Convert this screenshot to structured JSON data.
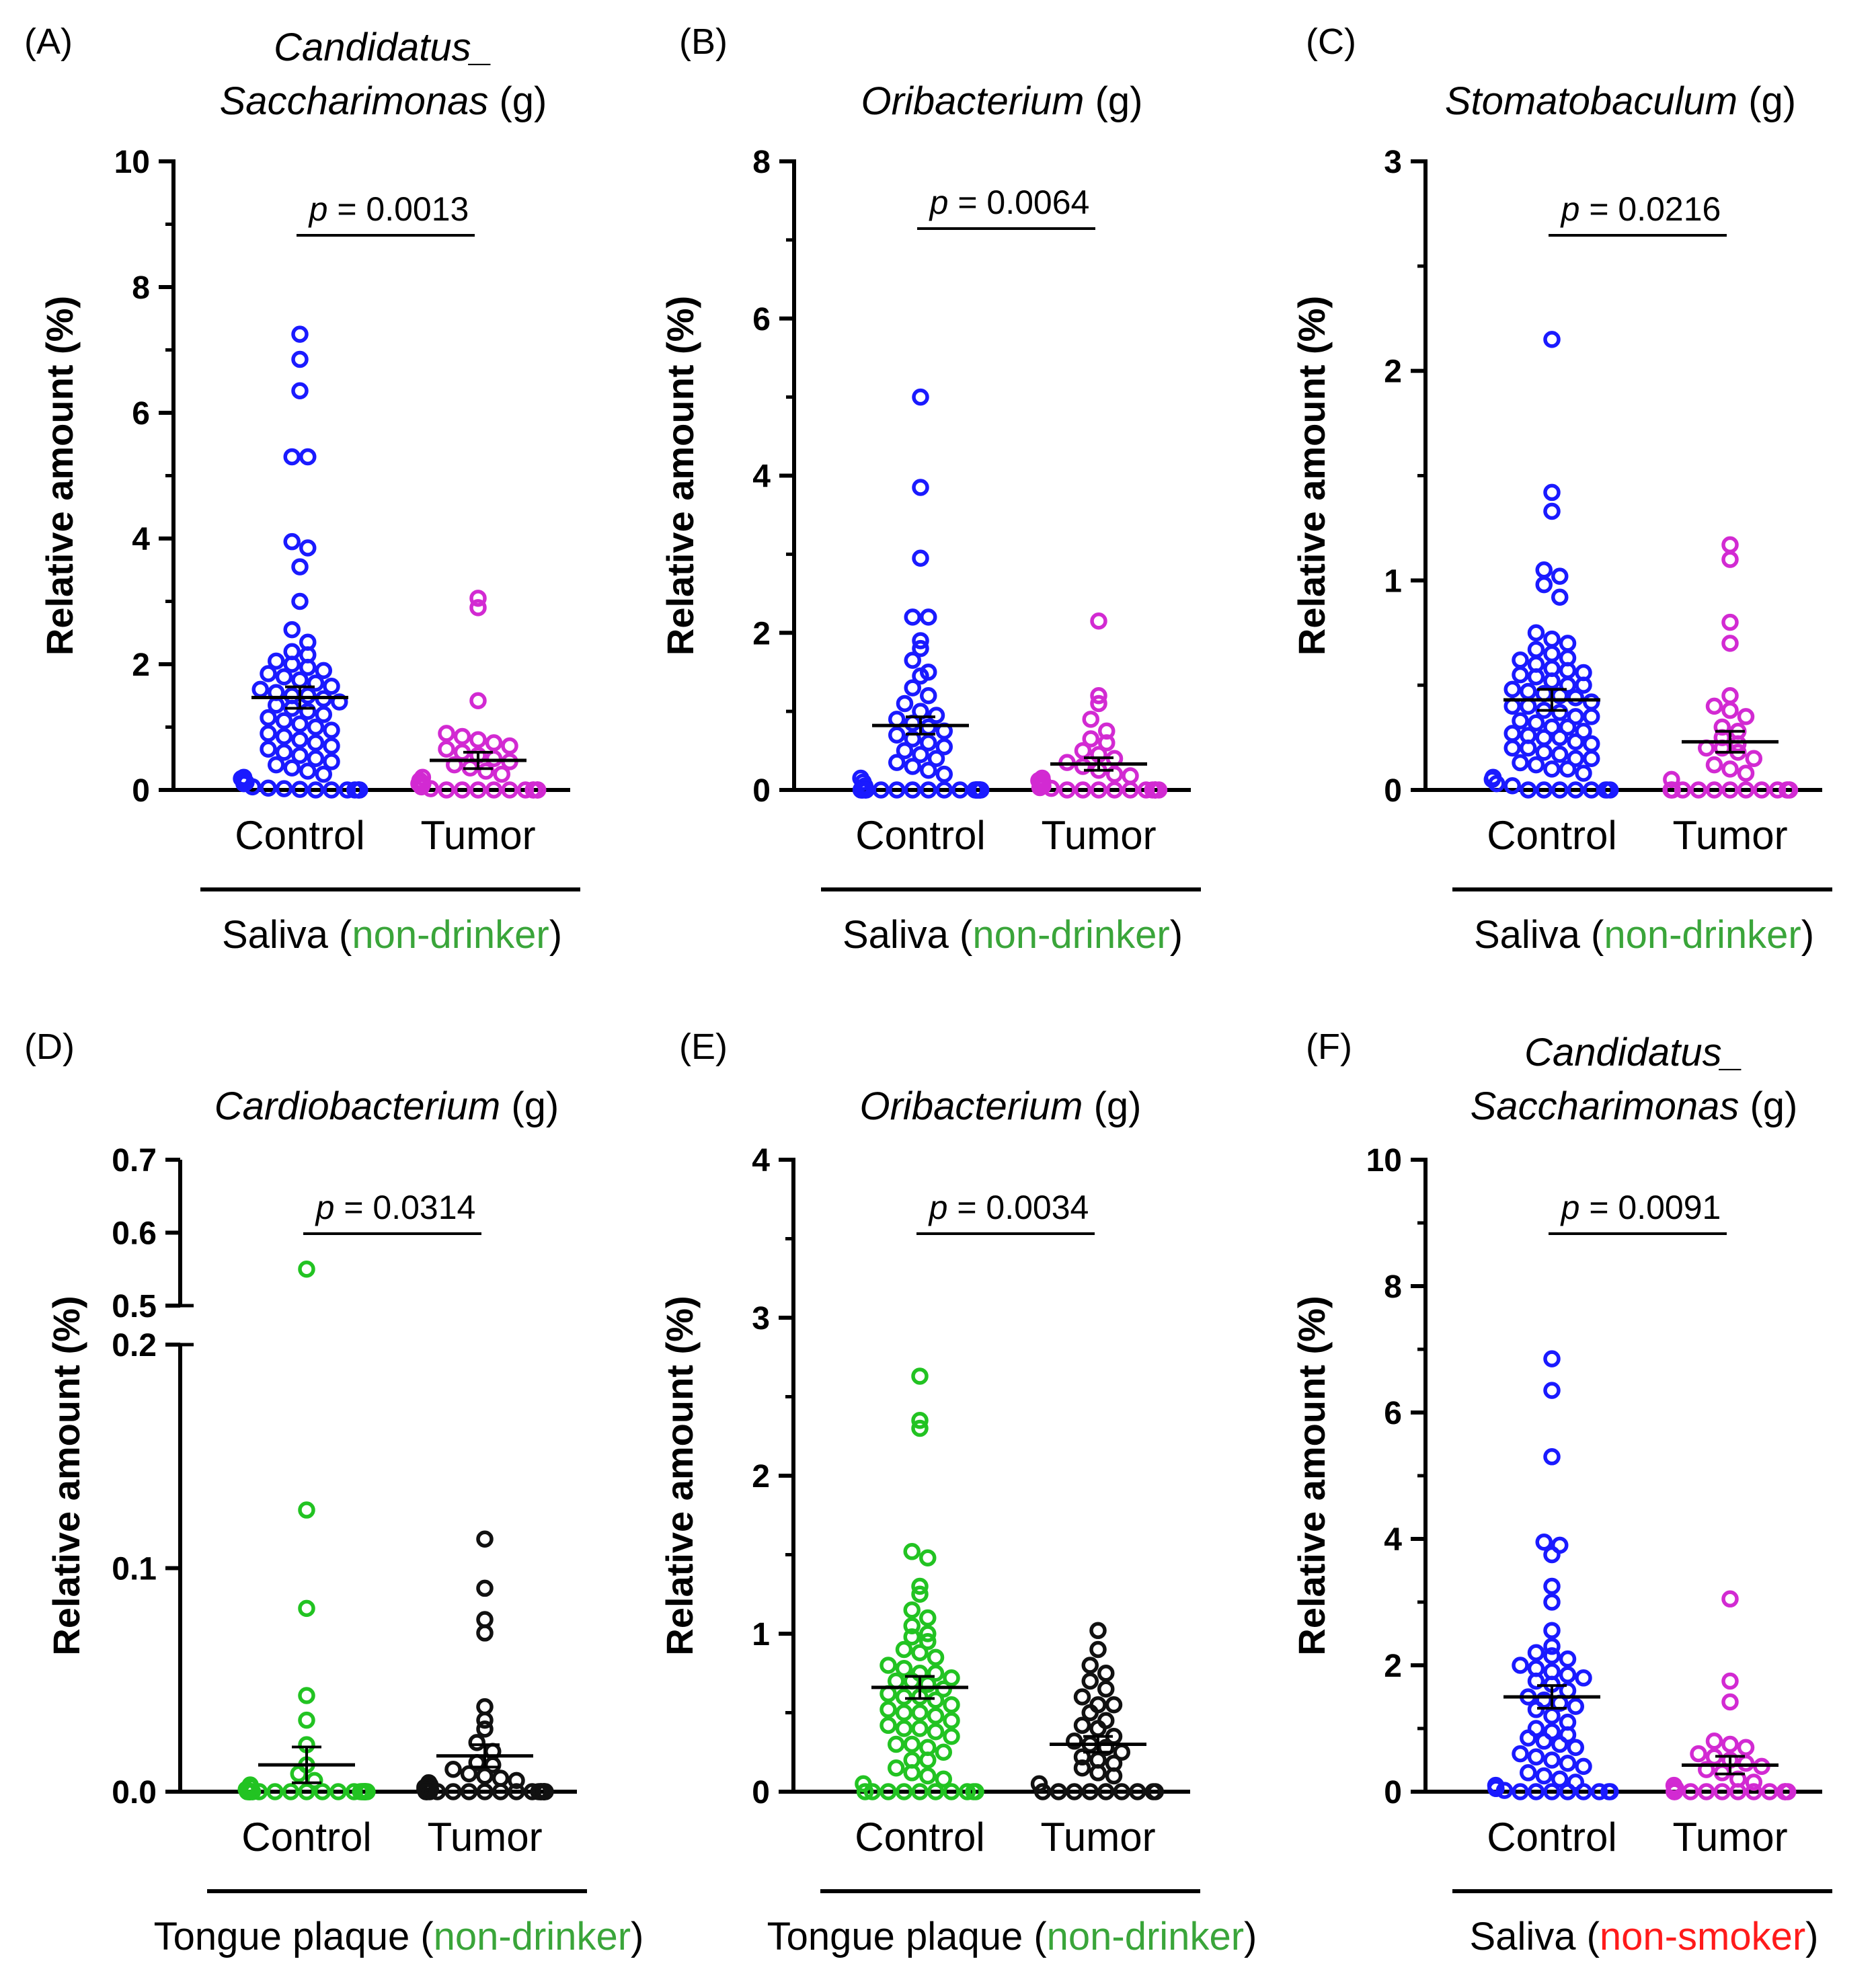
{
  "colors": {
    "control_blue": "#1a1aff",
    "tumor_magenta": "#d22ad2",
    "control_green": "#22c322",
    "tumor_black": "#111111",
    "condition_green": "#3aa53a",
    "condition_red": "#ff1a1a",
    "axis": "#000000"
  },
  "chart_data": [
    {
      "id": "A",
      "panel_label": "(A)",
      "type": "scatter",
      "title_lines": [
        [
          {
            "text": "Candidatus_",
            "italic": true
          }
        ],
        [
          {
            "text": "Saccharimonas",
            "italic": true
          },
          {
            "text": " (g)",
            "italic": false
          }
        ]
      ],
      "ylabel": "Relative amount (%)",
      "ylim": [
        0,
        10
      ],
      "yticks": [
        0,
        2,
        4,
        6,
        8,
        10
      ],
      "yticklabels": [
        "0",
        "2",
        "4",
        "6",
        "8",
        "10"
      ],
      "categories": [
        "Control",
        "Tumor"
      ],
      "p_label": "p",
      "p_value": " = 0.0013",
      "group_label": "Saliva",
      "condition": "non-drinker",
      "condition_color": "#3aa53a",
      "series": [
        {
          "name": "Control",
          "color": "#1a1aff",
          "mean": 1.47,
          "sem": 0.17,
          "values": [
            7.25,
            6.85,
            6.35,
            5.3,
            5.3,
            3.95,
            3.85,
            3.55,
            3.0,
            2.55,
            2.35,
            2.2,
            2.15,
            2.05,
            2.0,
            1.95,
            1.9,
            1.85,
            1.8,
            1.75,
            1.7,
            1.65,
            1.6,
            1.55,
            1.5,
            1.5,
            1.45,
            1.4,
            1.35,
            1.3,
            1.25,
            1.2,
            1.15,
            1.1,
            1.05,
            1.0,
            0.95,
            0.9,
            0.85,
            0.8,
            0.75,
            0.7,
            0.65,
            0.6,
            0.55,
            0.5,
            0.45,
            0.4,
            0.35,
            0.3,
            0.25,
            0.2,
            0.18,
            0.15,
            0.12,
            0.1,
            0.05,
            0.03,
            0.02,
            0.01,
            0.0,
            0.0,
            0.0,
            0.0,
            0.0,
            0.0,
            0.0,
            0.0
          ]
        },
        {
          "name": "Tumor",
          "color": "#d22ad2",
          "mean": 0.47,
          "sem": 0.13,
          "values": [
            3.05,
            2.9,
            1.42,
            0.9,
            0.85,
            0.8,
            0.75,
            0.7,
            0.65,
            0.6,
            0.55,
            0.5,
            0.45,
            0.4,
            0.35,
            0.3,
            0.25,
            0.2,
            0.15,
            0.1,
            0.1,
            0.05,
            0.02,
            0.0,
            0.0,
            0.0,
            0.0,
            0.0,
            0.0,
            0.0,
            0.0,
            0.0,
            0.0,
            0.0
          ]
        }
      ]
    },
    {
      "id": "B",
      "panel_label": "(B)",
      "type": "scatter",
      "title_lines": [
        [
          {
            "text": "Oribacterium",
            "italic": true
          },
          {
            "text": " (g)",
            "italic": false
          }
        ]
      ],
      "ylabel": "Relative amount (%)",
      "ylim": [
        0,
        8
      ],
      "yticks": [
        0,
        2,
        4,
        6,
        8
      ],
      "yticklabels": [
        "0",
        "2",
        "4",
        "6",
        "8"
      ],
      "categories": [
        "Control",
        "Tumor"
      ],
      "p_label": "p",
      "p_value": " = 0.0064",
      "group_label": "Saliva",
      "condition": "non-drinker",
      "condition_color": "#3aa53a",
      "series": [
        {
          "name": "Control",
          "color": "#1a1aff",
          "mean": 0.82,
          "sem": 0.11,
          "values": [
            5.0,
            3.85,
            2.95,
            2.2,
            2.2,
            1.9,
            1.8,
            1.65,
            1.5,
            1.45,
            1.3,
            1.2,
            1.1,
            1.0,
            0.95,
            0.9,
            0.85,
            0.8,
            0.75,
            0.7,
            0.65,
            0.6,
            0.55,
            0.5,
            0.45,
            0.4,
            0.35,
            0.3,
            0.25,
            0.2,
            0.15,
            0.1,
            0.05,
            0.03,
            0.02,
            0.01,
            0.0,
            0.0,
            0.0,
            0.0,
            0.0,
            0.0,
            0.0,
            0.0,
            0.0,
            0.0,
            0.0,
            0.0,
            0.0,
            0.0,
            0.0,
            0.0,
            0.0,
            0.0,
            0.0,
            0.0,
            0.0,
            0.0,
            0.0,
            0.0,
            0.0,
            0.0,
            0.0,
            0.0,
            0.0,
            0.0
          ]
        },
        {
          "name": "Tumor",
          "color": "#d22ad2",
          "mean": 0.33,
          "sem": 0.08,
          "values": [
            2.15,
            1.2,
            1.1,
            0.9,
            0.75,
            0.65,
            0.6,
            0.5,
            0.45,
            0.4,
            0.35,
            0.3,
            0.25,
            0.2,
            0.18,
            0.15,
            0.12,
            0.1,
            0.08,
            0.05,
            0.03,
            0.02,
            0.0,
            0.0,
            0.0,
            0.0,
            0.0,
            0.0,
            0.0,
            0.0,
            0.0,
            0.0,
            0.0,
            0.0
          ]
        }
      ]
    },
    {
      "id": "C",
      "panel_label": "(C)",
      "type": "scatter",
      "title_lines": [
        [
          {
            "text": "Stomatobaculum",
            "italic": true
          },
          {
            "text": " (g)",
            "italic": false
          }
        ]
      ],
      "ylabel": "Relative amount (%)",
      "ylim": [
        0,
        3
      ],
      "yticks": [
        0,
        1,
        2,
        3
      ],
      "yticklabels": [
        "0",
        "1",
        "2",
        "3"
      ],
      "categories": [
        "Control",
        "Tumor"
      ],
      "p_label": "p",
      "p_value": " = 0.0216",
      "group_label": "Saliva",
      "condition": "non-drinker",
      "condition_color": "#3aa53a",
      "series": [
        {
          "name": "Control",
          "color": "#1a1aff",
          "mean": 0.43,
          "sem": 0.05,
          "values": [
            2.15,
            1.42,
            1.33,
            1.05,
            1.02,
            0.98,
            0.92,
            0.75,
            0.72,
            0.7,
            0.67,
            0.65,
            0.63,
            0.62,
            0.6,
            0.58,
            0.57,
            0.56,
            0.55,
            0.54,
            0.52,
            0.5,
            0.5,
            0.48,
            0.47,
            0.46,
            0.45,
            0.44,
            0.42,
            0.4,
            0.4,
            0.38,
            0.37,
            0.35,
            0.35,
            0.33,
            0.32,
            0.3,
            0.3,
            0.28,
            0.27,
            0.26,
            0.25,
            0.25,
            0.23,
            0.22,
            0.2,
            0.2,
            0.18,
            0.17,
            0.15,
            0.15,
            0.13,
            0.12,
            0.1,
            0.1,
            0.08,
            0.06,
            0.05,
            0.03,
            0.02,
            0.0,
            0.0,
            0.0,
            0.0,
            0.0,
            0.0,
            0.0,
            0.0
          ]
        },
        {
          "name": "Tumor",
          "color": "#d22ad2",
          "mean": 0.23,
          "sem": 0.05,
          "values": [
            1.17,
            1.1,
            0.8,
            0.7,
            0.45,
            0.4,
            0.38,
            0.35,
            0.3,
            0.28,
            0.25,
            0.22,
            0.2,
            0.2,
            0.18,
            0.15,
            0.12,
            0.1,
            0.08,
            0.05,
            0.0,
            0.0,
            0.0,
            0.0,
            0.0,
            0.0,
            0.0,
            0.0,
            0.0,
            0.0,
            0.0,
            0.0,
            0.0,
            0.0
          ]
        }
      ]
    },
    {
      "id": "D",
      "panel_label": "(D)",
      "type": "scatter",
      "title_lines": [
        [
          {
            "text": "Cardiobacterium",
            "italic": true
          },
          {
            "text": " (g)",
            "italic": false
          }
        ]
      ],
      "ylabel": "Relative amount (%)",
      "broken_axis": {
        "lower": [
          0,
          0.2
        ],
        "upper": [
          0.5,
          0.7
        ]
      },
      "yticks": [
        0.0,
        0.1,
        0.2,
        0.5,
        0.6,
        0.7
      ],
      "yticklabels": [
        "0.0",
        "0.1",
        "0.2",
        "0.5",
        "0.6",
        "0.7"
      ],
      "categories": [
        "Control",
        "Tumor"
      ],
      "p_label": "p",
      "p_value": " = 0.0314",
      "group_label": "Tongue plaque",
      "condition": "non-drinker",
      "condition_color": "#3aa53a",
      "series": [
        {
          "name": "Control",
          "color": "#22c322",
          "mean": 0.012,
          "sem": 0.008,
          "values": [
            0.55,
            0.126,
            0.082,
            0.043,
            0.032,
            0.021,
            0.012,
            0.008,
            0.005,
            0.003,
            0.002,
            0.001,
            0.0,
            0.0,
            0.0,
            0.0,
            0.0,
            0.0,
            0.0,
            0.0,
            0.0,
            0.0,
            0.0,
            0.0,
            0.0,
            0.0,
            0.0,
            0.0,
            0.0,
            0.0,
            0.0,
            0.0,
            0.0,
            0.0,
            0.0,
            0.0,
            0.0,
            0.0,
            0.0,
            0.0,
            0.0,
            0.0
          ]
        },
        {
          "name": "Tumor",
          "color": "#111111",
          "mean": 0.016,
          "sem": 0.005,
          "values": [
            0.113,
            0.091,
            0.077,
            0.071,
            0.038,
            0.032,
            0.028,
            0.022,
            0.018,
            0.013,
            0.012,
            0.01,
            0.008,
            0.007,
            0.006,
            0.005,
            0.004,
            0.003,
            0.003,
            0.002,
            0.002,
            0.001,
            0.001,
            0.0,
            0.0,
            0.0,
            0.0,
            0.0,
            0.0,
            0.0,
            0.0,
            0.0,
            0.0,
            0.0,
            0.0,
            0.0,
            0.0,
            0.0,
            0.0,
            0.0,
            0.0,
            0.0,
            0.0,
            0.0,
            0.0
          ]
        }
      ]
    },
    {
      "id": "E",
      "panel_label": "(E)",
      "type": "scatter",
      "title_lines": [
        [
          {
            "text": "Oribacterium",
            "italic": true
          },
          {
            "text": " (g)",
            "italic": false
          }
        ]
      ],
      "ylabel": "Relative amount (%)",
      "ylim": [
        0,
        4
      ],
      "yticks": [
        0,
        1,
        2,
        3,
        4
      ],
      "yticklabels": [
        "0",
        "1",
        "2",
        "3",
        "4"
      ],
      "categories": [
        "Control",
        "Tumor"
      ],
      "p_label": "p",
      "p_value": " = 0.0034",
      "group_label": "Tongue plaque",
      "condition": "non-drinker",
      "condition_color": "#3aa53a",
      "series": [
        {
          "name": "Control",
          "color": "#22c322",
          "mean": 0.66,
          "sem": 0.07,
          "values": [
            2.63,
            2.35,
            2.3,
            1.52,
            1.48,
            1.3,
            1.25,
            1.15,
            1.1,
            1.05,
            1.0,
            0.98,
            0.95,
            0.9,
            0.88,
            0.85,
            0.8,
            0.78,
            0.75,
            0.75,
            0.72,
            0.7,
            0.7,
            0.68,
            0.65,
            0.62,
            0.6,
            0.6,
            0.58,
            0.55,
            0.52,
            0.5,
            0.5,
            0.48,
            0.45,
            0.42,
            0.4,
            0.4,
            0.38,
            0.35,
            0.3,
            0.3,
            0.28,
            0.25,
            0.2,
            0.2,
            0.15,
            0.12,
            0.1,
            0.08,
            0.05,
            0.0,
            0.0,
            0.0,
            0.0,
            0.0,
            0.0,
            0.0,
            0.0,
            0.0,
            0.0
          ]
        },
        {
          "name": "Tumor",
          "color": "#111111",
          "mean": 0.3,
          "sem": 0.05,
          "values": [
            1.02,
            0.9,
            0.8,
            0.75,
            0.7,
            0.65,
            0.6,
            0.55,
            0.55,
            0.5,
            0.45,
            0.42,
            0.4,
            0.35,
            0.32,
            0.3,
            0.28,
            0.25,
            0.22,
            0.2,
            0.18,
            0.15,
            0.12,
            0.1,
            0.05,
            0.0,
            0.0,
            0.0,
            0.0,
            0.0,
            0.0,
            0.0,
            0.0,
            0.0
          ]
        }
      ]
    },
    {
      "id": "F",
      "panel_label": "(F)",
      "type": "scatter",
      "title_lines": [
        [
          {
            "text": "Candidatus_",
            "italic": true
          }
        ],
        [
          {
            "text": "Saccharimonas",
            "italic": true
          },
          {
            "text": " (g)",
            "italic": false
          }
        ]
      ],
      "ylabel": "Relative amount (%)",
      "ylim": [
        0,
        10
      ],
      "yticks": [
        0,
        2,
        4,
        6,
        8,
        10
      ],
      "yticklabels": [
        "0",
        "2",
        "4",
        "6",
        "8",
        "10"
      ],
      "categories": [
        "Control",
        "Tumor"
      ],
      "p_label": "p",
      "p_value": " = 0.0091",
      "group_label": "Saliva",
      "condition": "non-smoker",
      "condition_color": "#ff1a1a",
      "series": [
        {
          "name": "Control",
          "color": "#1a1aff",
          "mean": 1.5,
          "sem": 0.18,
          "values": [
            6.85,
            6.35,
            5.3,
            3.95,
            3.9,
            3.75,
            3.25,
            3.0,
            2.55,
            2.3,
            2.2,
            2.15,
            2.1,
            2.0,
            1.95,
            1.9,
            1.85,
            1.8,
            1.75,
            1.7,
            1.6,
            1.5,
            1.45,
            1.4,
            1.35,
            1.3,
            1.2,
            1.1,
            1.0,
            0.95,
            0.9,
            0.85,
            0.8,
            0.75,
            0.7,
            0.6,
            0.55,
            0.5,
            0.45,
            0.4,
            0.3,
            0.25,
            0.2,
            0.15,
            0.1,
            0.05,
            0.02,
            0.0,
            0.0,
            0.0,
            0.0,
            0.0,
            0.0,
            0.0,
            0.0
          ]
        },
        {
          "name": "Tumor",
          "color": "#d22ad2",
          "mean": 0.42,
          "sem": 0.14,
          "values": [
            3.05,
            1.75,
            1.42,
            0.8,
            0.75,
            0.7,
            0.6,
            0.55,
            0.5,
            0.45,
            0.4,
            0.35,
            0.3,
            0.2,
            0.15,
            0.1,
            0.05,
            0.0,
            0.0,
            0.0,
            0.0,
            0.0,
            0.0,
            0.0,
            0.0,
            0.0,
            0.0,
            0.0,
            0.0
          ]
        }
      ]
    }
  ]
}
